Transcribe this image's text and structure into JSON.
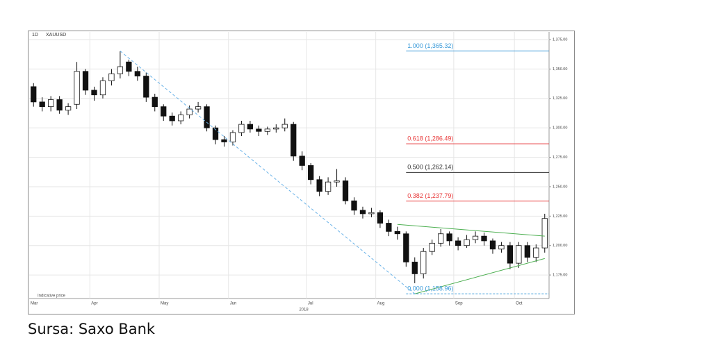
{
  "chart_data": {
    "type": "candlestick",
    "interval_label": "1D",
    "symbol": "XAUUSD",
    "note": "Indicative price",
    "year_label": "2018",
    "categories": [
      "Mar",
      null,
      null,
      null,
      null,
      null,
      null,
      "Apr",
      null,
      null,
      null,
      null,
      null,
      null,
      null,
      "May",
      null,
      null,
      null,
      null,
      null,
      null,
      null,
      "Jun",
      null,
      null,
      null,
      null,
      null,
      null,
      null,
      null,
      "Jul",
      null,
      null,
      null,
      null,
      null,
      null,
      null,
      "Aug",
      null,
      null,
      null,
      null,
      null,
      null,
      null,
      null,
      "Sep",
      null,
      null,
      null,
      null,
      null,
      null,
      "Oct",
      null,
      null,
      null
    ],
    "open": [
      1335,
      1322,
      1318,
      1324,
      1315,
      1320,
      1348,
      1332,
      1328,
      1340,
      1346,
      1356,
      1348,
      1344,
      1326,
      1318,
      1310,
      1306,
      1311,
      1316,
      1318,
      1300,
      1290,
      1288,
      1296,
      1303,
      1299,
      1297,
      1299,
      1300,
      1303,
      1276,
      1268,
      1256,
      1246,
      1254,
      1255,
      1238,
      1230,
      1227,
      1228,
      1219,
      1212,
      1210,
      1186,
      1176,
      1195,
      1202,
      1210,
      1204,
      1200,
      1205,
      1208,
      1204,
      1197,
      1200,
      1185,
      1200,
      1190,
      1198
    ],
    "high": [
      1338,
      1326,
      1327,
      1327,
      1321,
      1356,
      1350,
      1335,
      1343,
      1350,
      1365,
      1358,
      1352,
      1347,
      1329,
      1320,
      1313,
      1314,
      1319,
      1322,
      1320,
      1302,
      1293,
      1298,
      1306,
      1306,
      1302,
      1301,
      1303,
      1308,
      1305,
      1280,
      1270,
      1259,
      1258,
      1265,
      1258,
      1241,
      1233,
      1232,
      1230,
      1222,
      1216,
      1212,
      1190,
      1198,
      1205,
      1214,
      1212,
      1207,
      1209,
      1212,
      1211,
      1206,
      1203,
      1203,
      1203,
      1203,
      1201,
      1227
    ],
    "low": [
      1318,
      1314,
      1314,
      1312,
      1311,
      1316,
      1328,
      1323,
      1325,
      1336,
      1342,
      1344,
      1340,
      1322,
      1314,
      1306,
      1302,
      1303,
      1308,
      1313,
      1297,
      1286,
      1284,
      1285,
      1293,
      1296,
      1293,
      1294,
      1296,
      1297,
      1272,
      1264,
      1252,
      1242,
      1243,
      1250,
      1235,
      1226,
      1223,
      1224,
      1215,
      1208,
      1205,
      1182,
      1168,
      1172,
      1192,
      1199,
      1200,
      1196,
      1198,
      1202,
      1200,
      1193,
      1194,
      1180,
      1181,
      1186,
      1186,
      1194
    ],
    "close": [
      1322,
      1318,
      1324,
      1315,
      1318,
      1348,
      1332,
      1328,
      1340,
      1346,
      1352,
      1348,
      1344,
      1326,
      1318,
      1310,
      1306,
      1311,
      1316,
      1318,
      1300,
      1290,
      1288,
      1296,
      1303,
      1299,
      1297,
      1299,
      1300,
      1303,
      1276,
      1268,
      1256,
      1246,
      1254,
      1255,
      1238,
      1230,
      1227,
      1228,
      1219,
      1212,
      1210,
      1186,
      1176,
      1195,
      1202,
      1210,
      1204,
      1200,
      1205,
      1208,
      1204,
      1197,
      1200,
      1185,
      1200,
      1190,
      1198,
      1223
    ],
    "ylim": [
      1155,
      1381.5
    ],
    "yticks": [
      {
        "value": 1175,
        "label": "1,175.00"
      },
      {
        "value": 1200,
        "label": "1,200.00"
      },
      {
        "value": 1225,
        "label": "1,225.00"
      },
      {
        "value": 1250,
        "label": "1,250.00"
      },
      {
        "value": 1275,
        "label": "1,275.00"
      },
      {
        "value": 1300,
        "label": "1,300.00"
      },
      {
        "value": 1325,
        "label": "1,325.00"
      },
      {
        "value": 1350,
        "label": "1,350.00"
      },
      {
        "value": 1375,
        "label": "1,375.00"
      }
    ],
    "grid": true,
    "levels": [
      {
        "label": "1.000 (1,365.32)",
        "value": 1365.32,
        "color": "#3a9ad9"
      },
      {
        "label": "0.618 (1,286.49)",
        "value": 1286.49,
        "color": "#e8393a"
      },
      {
        "label": "0.500 (1,262.14)",
        "value": 1262.14,
        "color": "#333333"
      },
      {
        "label": "0.382 (1,237.79)",
        "value": 1237.79,
        "color": "#e8393a"
      },
      {
        "label": "0.000 (1,158.96)",
        "value": 1158.96,
        "color": "#3a9ad9"
      }
    ],
    "level_start": 43,
    "trendlines": [
      {
        "from": 10,
        "to": 44,
        "values": [
          1365.32,
          1158.96
        ],
        "color": "#6bb3e8",
        "dashed": true
      },
      {
        "from": 42,
        "to": 59,
        "values": [
          1218,
          1208
        ],
        "color": "#4caf50",
        "dashed": false
      },
      {
        "from": 44,
        "to": 59,
        "values": [
          1158.96,
          1189
        ],
        "color": "#4caf50",
        "dashed": false
      }
    ]
  },
  "caption": "Sursa: Saxo Bank"
}
